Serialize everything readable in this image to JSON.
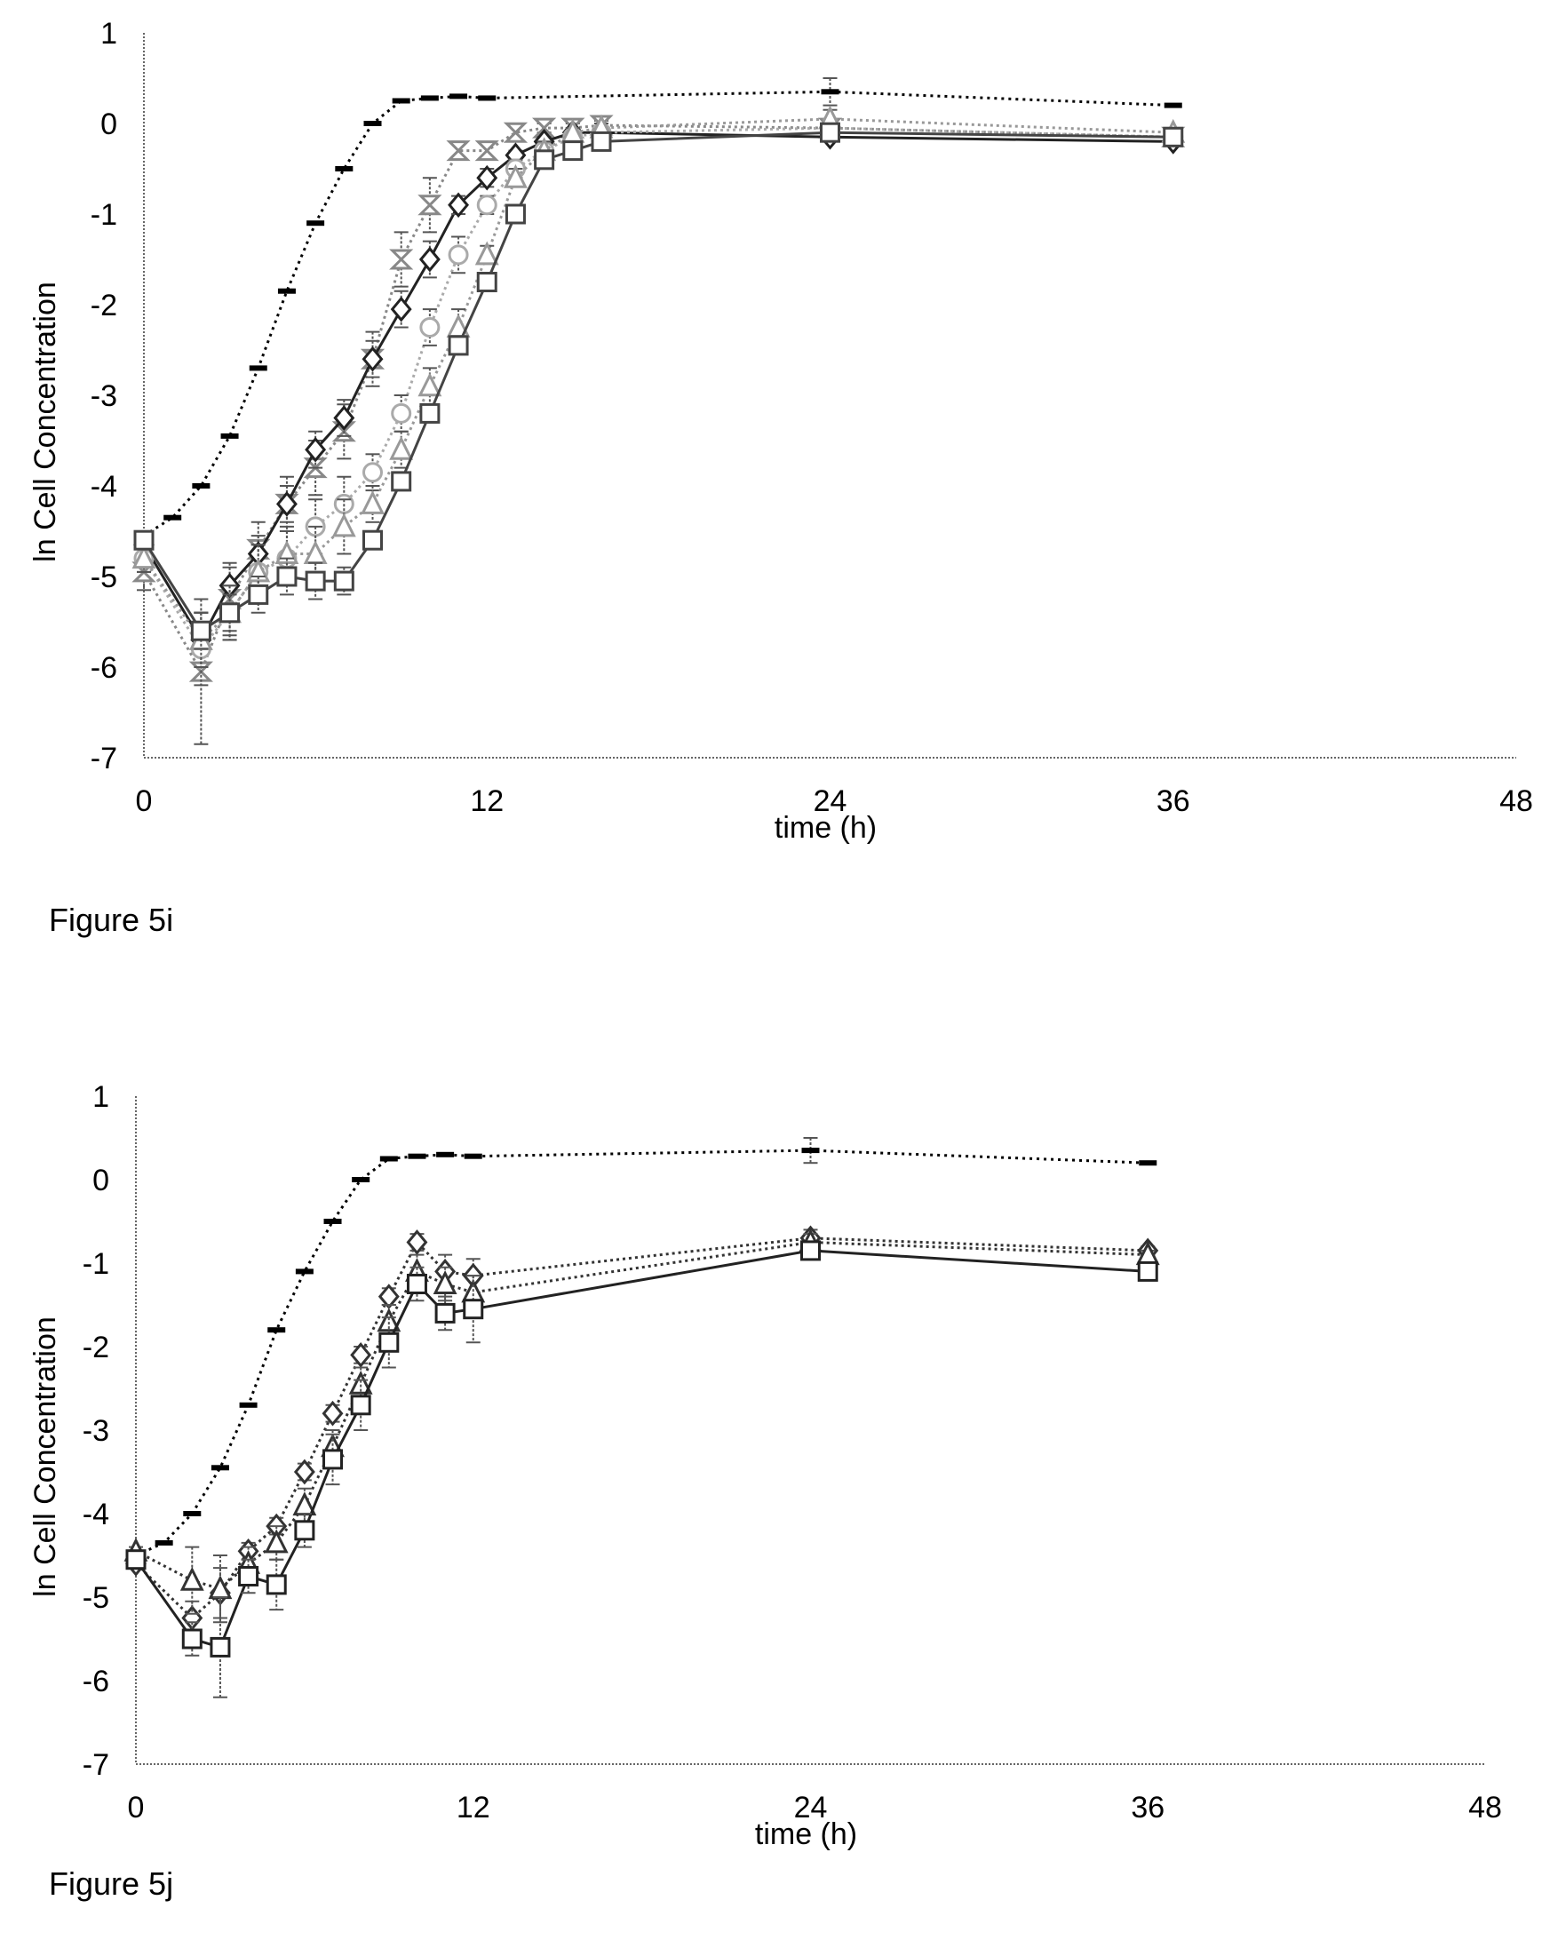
{
  "charts": [
    {
      "caption": "Figure 5i",
      "chart_data": {
        "type": "line",
        "xlabel": "time (h)",
        "ylabel": "ln Cell Concentration",
        "xlim": [
          0,
          48
        ],
        "ylim": [
          -7,
          1
        ],
        "xticks": [
          0,
          12,
          24,
          36,
          48
        ],
        "yticks": [
          -7,
          -6,
          -5,
          -4,
          -3,
          -2,
          -1,
          0,
          1
        ],
        "series": [
          {
            "marker": "dash",
            "color": "#000000",
            "dash": "3,5",
            "x": [
              0,
              1,
              2,
              3,
              4,
              5,
              6,
              7,
              8,
              9,
              10,
              11,
              12,
              24,
              36
            ],
            "y": [
              -4.55,
              -4.35,
              -4.0,
              -3.45,
              -2.7,
              -1.85,
              -1.1,
              -0.5,
              0.0,
              0.25,
              0.28,
              0.3,
              0.28,
              0.35,
              0.2
            ],
            "err": [
              0,
              0,
              0,
              0,
              0,
              0,
              0,
              0,
              0,
              0,
              0,
              0,
              0,
              0.15,
              0
            ]
          },
          {
            "marker": "hourglass",
            "color": "#888888",
            "dash": "3,4",
            "x": [
              0,
              2,
              3,
              4,
              5,
              6,
              7,
              8,
              9,
              10,
              11,
              12,
              13,
              14,
              15,
              16,
              24,
              36
            ],
            "y": [
              -4.95,
              -6.05,
              -5.25,
              -4.7,
              -4.2,
              -3.8,
              -3.4,
              -2.6,
              -1.5,
              -0.9,
              -0.3,
              -0.3,
              -0.1,
              -0.05,
              -0.05,
              -0.02,
              -0.05,
              -0.15
            ],
            "err": [
              0.2,
              0.8,
              0.4,
              0.3,
              0.3,
              0.3,
              0.3,
              0.3,
              0.3,
              0.3,
              0.1,
              0.1,
              0.1,
              0.05,
              0.05,
              0.05,
              0.1,
              0.05
            ]
          },
          {
            "marker": "diamond",
            "color": "#222222",
            "dash": "none",
            "x": [
              0,
              2,
              3,
              4,
              5,
              6,
              7,
              8,
              9,
              10,
              11,
              12,
              13,
              14,
              15,
              16,
              24,
              36
            ],
            "y": [
              -4.65,
              -5.7,
              -5.1,
              -4.75,
              -4.2,
              -3.6,
              -3.25,
              -2.6,
              -2.05,
              -1.5,
              -0.9,
              -0.6,
              -0.35,
              -0.2,
              -0.1,
              -0.1,
              -0.15,
              -0.2
            ],
            "err": [
              0.1,
              0.3,
              0.2,
              0.2,
              0.2,
              0.2,
              0.2,
              0.2,
              0.2,
              0.2,
              0.1,
              0.1,
              0.05,
              0.05,
              0.05,
              0.05,
              0.05,
              0.05
            ]
          },
          {
            "marker": "circle",
            "color": "#aaaaaa",
            "dash": "3,4",
            "x": [
              0,
              2,
              3,
              4,
              5,
              6,
              7,
              8,
              9,
              10,
              11,
              12,
              13,
              14,
              15,
              16,
              24,
              36
            ],
            "y": [
              -4.8,
              -5.8,
              -5.4,
              -4.95,
              -4.8,
              -4.45,
              -4.2,
              -3.85,
              -3.2,
              -2.25,
              -1.45,
              -0.9,
              -0.5,
              -0.3,
              -0.15,
              -0.1,
              -0.05,
              -0.15
            ],
            "err": [
              0.15,
              0.4,
              0.3,
              0.3,
              0.3,
              0.3,
              0.3,
              0.2,
              0.2,
              0.2,
              0.2,
              0.1,
              0.1,
              0.1,
              0.05,
              0.05,
              0.05,
              0.05
            ]
          },
          {
            "marker": "triangle",
            "color": "#999999",
            "dash": "3,4",
            "x": [
              0,
              2,
              3,
              4,
              5,
              6,
              7,
              8,
              9,
              10,
              11,
              12,
              13,
              14,
              15,
              16,
              24,
              36
            ],
            "y": [
              -4.8,
              -5.7,
              -5.4,
              -4.95,
              -4.75,
              -4.75,
              -4.45,
              -4.2,
              -3.6,
              -2.9,
              -2.25,
              -1.45,
              -0.6,
              -0.3,
              -0.1,
              -0.05,
              0.05,
              -0.1
            ],
            "err": [
              0.15,
              0.3,
              0.3,
              0.3,
              0.3,
              0.3,
              0.3,
              0.2,
              0.2,
              0.2,
              0.2,
              0.1,
              0.1,
              0.1,
              0.05,
              0.05,
              0.1,
              0.05
            ]
          },
          {
            "marker": "square",
            "color": "#444444",
            "dash": "none",
            "x": [
              0,
              2,
              3,
              4,
              5,
              6,
              7,
              8,
              9,
              10,
              11,
              12,
              13,
              14,
              15,
              16,
              24,
              36
            ],
            "y": [
              -4.6,
              -5.6,
              -5.4,
              -5.2,
              -5.0,
              -5.05,
              -5.05,
              -4.6,
              -3.95,
              -3.2,
              -2.45,
              -1.75,
              -1.0,
              -0.4,
              -0.3,
              -0.2,
              -0.1,
              -0.15
            ],
            "err": [
              0.1,
              0.2,
              0.2,
              0.2,
              0.2,
              0.2,
              0.15,
              0.1,
              0.1,
              0.1,
              0.1,
              0.1,
              0.1,
              0.1,
              0.05,
              0.05,
              0.05,
              0.05
            ]
          }
        ]
      }
    },
    {
      "caption": "Figure 5j",
      "chart_data": {
        "type": "line",
        "xlabel": "time (h)",
        "ylabel": "ln Cell Concentration",
        "xlim": [
          0,
          48
        ],
        "ylim": [
          -7,
          1
        ],
        "xticks": [
          0,
          12,
          24,
          36,
          48
        ],
        "yticks": [
          -7,
          -6,
          -5,
          -4,
          -3,
          -2,
          -1,
          0,
          1
        ],
        "series": [
          {
            "marker": "dash",
            "color": "#000000",
            "dash": "3,5",
            "x": [
              0,
              1,
              2,
              3,
              4,
              5,
              6,
              7,
              8,
              9,
              10,
              11,
              12,
              24,
              36
            ],
            "y": [
              -4.5,
              -4.35,
              -4.0,
              -3.45,
              -2.7,
              -1.8,
              -1.1,
              -0.5,
              0.0,
              0.25,
              0.28,
              0.3,
              0.28,
              0.35,
              0.2
            ],
            "err": [
              0,
              0,
              0,
              0,
              0,
              0,
              0,
              0,
              0,
              0,
              0,
              0,
              0,
              0.15,
              0
            ]
          },
          {
            "marker": "diamond",
            "color": "#333333",
            "dash": "3,4",
            "x": [
              0,
              2,
              3,
              4,
              5,
              6,
              7,
              8,
              9,
              10,
              11,
              12,
              24,
              36
            ],
            "y": [
              -4.6,
              -5.25,
              -4.95,
              -4.45,
              -4.15,
              -3.5,
              -2.8,
              -2.1,
              -1.4,
              -0.75,
              -1.1,
              -1.15,
              -0.7,
              -0.85
            ],
            "err": [
              0.05,
              0.2,
              0.3,
              0.1,
              0.1,
              0.1,
              0.1,
              0.1,
              0.1,
              0.1,
              0.2,
              0.2,
              0.1,
              0.05
            ]
          },
          {
            "marker": "triangle",
            "color": "#333333",
            "dash": "3,4",
            "x": [
              0,
              2,
              3,
              4,
              5,
              6,
              7,
              8,
              9,
              10,
              11,
              12,
              24,
              36
            ],
            "y": [
              -4.45,
              -4.8,
              -4.9,
              -4.6,
              -4.35,
              -3.9,
              -3.2,
              -2.45,
              -1.7,
              -1.1,
              -1.25,
              -1.35,
              -0.75,
              -0.9
            ],
            "err": [
              0.05,
              0.4,
              0.4,
              0.2,
              0.2,
              0.2,
              0.2,
              0.2,
              0.2,
              0.2,
              0.2,
              0.2,
              0.1,
              0.05
            ]
          },
          {
            "marker": "square",
            "color": "#222222",
            "dash": "none",
            "x": [
              0,
              2,
              3,
              4,
              5,
              6,
              7,
              8,
              9,
              10,
              11,
              12,
              24,
              36
            ],
            "y": [
              -4.55,
              -5.5,
              -5.6,
              -4.75,
              -4.85,
              -4.2,
              -3.35,
              -2.7,
              -1.95,
              -1.25,
              -1.6,
              -1.55,
              -0.85,
              -1.1
            ],
            "err": [
              0.05,
              0.2,
              0.6,
              0.2,
              0.3,
              0.2,
              0.3,
              0.3,
              0.3,
              0.2,
              0.2,
              0.4,
              0.05,
              0.05
            ]
          }
        ]
      }
    }
  ]
}
